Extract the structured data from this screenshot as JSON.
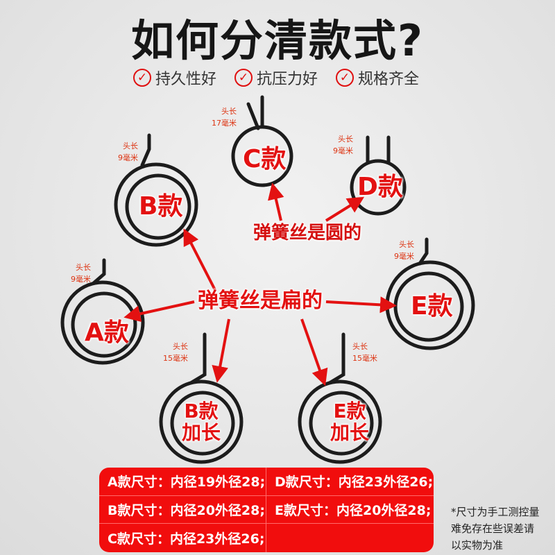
{
  "title": "如何分清款式?",
  "features": [
    "持久性好",
    "抗压力好",
    "规格齐全"
  ],
  "check_icon": "check-circle-icon",
  "accent": "#e31111",
  "models": {
    "a": {
      "label": "A款",
      "head": "头长",
      "len": "9毫米"
    },
    "b": {
      "label": "B款",
      "head": "头长",
      "len": "9毫米"
    },
    "c": {
      "label": "C款",
      "head": "头长",
      "len": "17毫米"
    },
    "d": {
      "label": "D款",
      "head": "头长",
      "len": "9毫米"
    },
    "e": {
      "label": "E款",
      "head": "头长",
      "len": "9毫米"
    },
    "bl": {
      "label1": "B款",
      "label2": "加长",
      "head": "头长",
      "len": "15毫米"
    },
    "el": {
      "label1": "E款",
      "label2": "加长",
      "head": "头长",
      "len": "15毫米"
    }
  },
  "round_wire": "弹簧丝是圆的",
  "flat_wire": "弹簧丝是扁的",
  "sizes": [
    "A款尺寸：内径19外径28;",
    "D款尺寸：内径23外径26;",
    "B款尺寸：内径20外径28;",
    "E款尺寸：内径20外径28;",
    "C款尺寸：内径23外径26;",
    ""
  ],
  "note": [
    "*尺寸为手工测控量",
    "难免存在些误差请",
    "以实物为准"
  ]
}
